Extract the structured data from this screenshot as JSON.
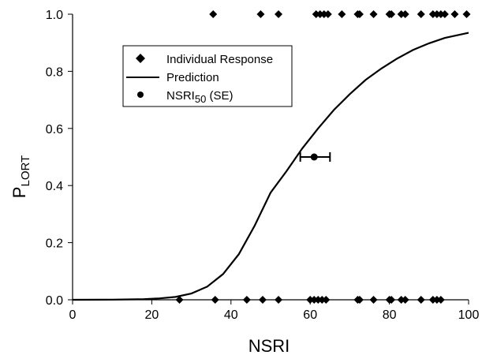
{
  "chart_data": {
    "type": "scatter",
    "title": "",
    "xlabel": "NSRI",
    "ylabel": {
      "main": "P",
      "subscript": "LORT"
    },
    "xlim": [
      0,
      100
    ],
    "ylim": [
      0,
      1
    ],
    "x_ticks": [
      "0",
      "20",
      "40",
      "60",
      "80",
      "100"
    ],
    "y_ticks": [
      "0.0",
      "0.2",
      "0.4",
      "0.6",
      "0.8",
      "1.0"
    ],
    "grid": false,
    "legend": {
      "position": "upper-left",
      "entries": [
        {
          "marker": "diamond",
          "label": "Individual Response"
        },
        {
          "marker": "line",
          "label": "Prediction"
        },
        {
          "marker": "circle",
          "label_main": "NSRI",
          "label_sub": "50",
          "label_suffix": " (SE)"
        }
      ]
    },
    "series": [
      {
        "name": "Individual Response",
        "kind": "scatter",
        "marker": "diamond",
        "points": [
          [
            35.5,
            1
          ],
          [
            47.5,
            1
          ],
          [
            52,
            1
          ],
          [
            61.5,
            1
          ],
          [
            62.5,
            1
          ],
          [
            63.5,
            1
          ],
          [
            64.5,
            1
          ],
          [
            68,
            1
          ],
          [
            72,
            1
          ],
          [
            72.5,
            1
          ],
          [
            76,
            1
          ],
          [
            80,
            1
          ],
          [
            80.5,
            1
          ],
          [
            83,
            1
          ],
          [
            84,
            1
          ],
          [
            88,
            1
          ],
          [
            91,
            1
          ],
          [
            92,
            1
          ],
          [
            93,
            1
          ],
          [
            94,
            1
          ],
          [
            96.5,
            1
          ],
          [
            99.5,
            1
          ],
          [
            27,
            0
          ],
          [
            36,
            0
          ],
          [
            44,
            0
          ],
          [
            48,
            0
          ],
          [
            52,
            0
          ],
          [
            60,
            0
          ],
          [
            61,
            0
          ],
          [
            62,
            0
          ],
          [
            63,
            0
          ],
          [
            64,
            0
          ],
          [
            72,
            0
          ],
          [
            72.5,
            0
          ],
          [
            76,
            0
          ],
          [
            80,
            0
          ],
          [
            80.5,
            0
          ],
          [
            83,
            0
          ],
          [
            84,
            0
          ],
          [
            88,
            0
          ],
          [
            91,
            0
          ],
          [
            92,
            0
          ],
          [
            93,
            0
          ]
        ]
      },
      {
        "name": "Prediction",
        "kind": "line",
        "points": [
          [
            0,
            0.0
          ],
          [
            10,
            0.0005
          ],
          [
            18,
            0.002
          ],
          [
            22,
            0.005
          ],
          [
            26,
            0.01
          ],
          [
            30,
            0.022
          ],
          [
            34,
            0.046
          ],
          [
            38,
            0.09
          ],
          [
            42,
            0.16
          ],
          [
            46,
            0.26
          ],
          [
            50,
            0.375
          ],
          [
            54,
            0.45
          ],
          [
            58,
            0.53
          ],
          [
            62,
            0.6
          ],
          [
            66,
            0.665
          ],
          [
            70,
            0.72
          ],
          [
            74,
            0.77
          ],
          [
            78,
            0.81
          ],
          [
            82,
            0.845
          ],
          [
            86,
            0.875
          ],
          [
            90,
            0.898
          ],
          [
            94,
            0.917
          ],
          [
            100,
            0.935
          ]
        ]
      },
      {
        "name": "NSRI50 (SE)",
        "kind": "point-with-error",
        "marker": "circle",
        "x": 61,
        "y": 0.5,
        "xerr_low": 57.5,
        "xerr_high": 65
      }
    ],
    "colors": {
      "ink": "#000000",
      "background": "#ffffff"
    }
  }
}
